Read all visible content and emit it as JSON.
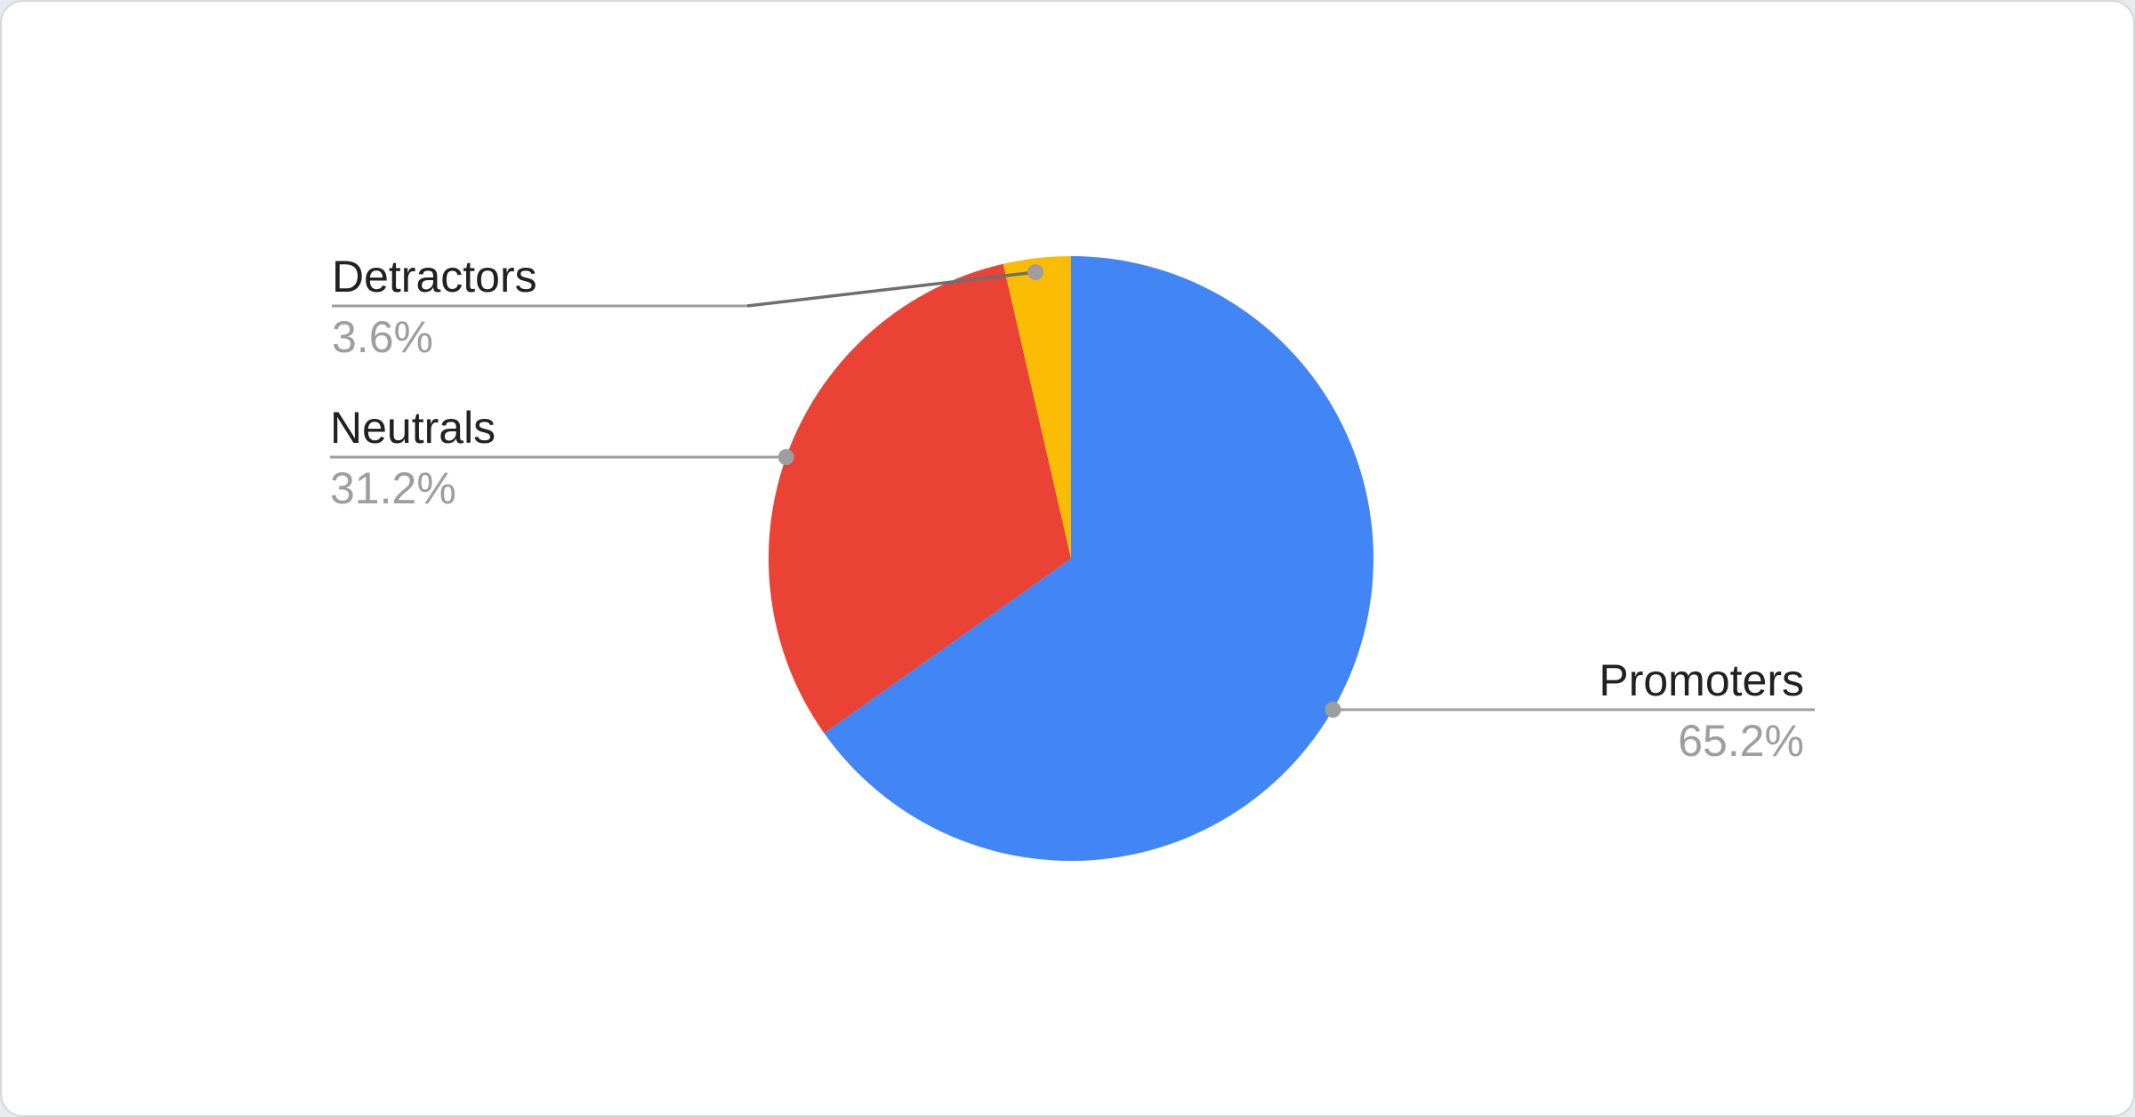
{
  "chart_data": {
    "type": "pie",
    "title": "",
    "legend_position": "labeled-callouts",
    "direction": "clockwise",
    "start_angle_deg": 0,
    "background_color": "#FFFFFF",
    "label_color": "#212121",
    "percent_color": "#9E9E9E",
    "connector_color": "#9E9E9E",
    "connector_diagonal_color": "#6E6E6E",
    "dot_color": "#9E9E9E",
    "slices": [
      {
        "label": "Promoters",
        "value": 65.2,
        "percent_label": "65.2%",
        "color": "#4285F4"
      },
      {
        "label": "Neutrals",
        "value": 31.2,
        "percent_label": "31.2%",
        "color": "#EA4335"
      },
      {
        "label": "Detractors",
        "value": 3.6,
        "percent_label": "3.6%",
        "color": "#FBBC04"
      }
    ]
  }
}
